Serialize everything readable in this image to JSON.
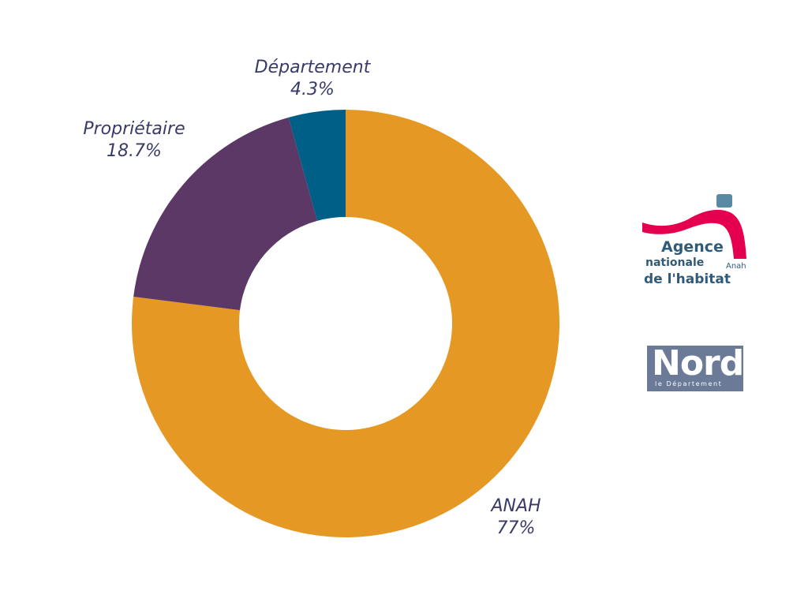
{
  "chart_data": {
    "type": "pie",
    "donut": true,
    "slices": [
      {
        "label": "ANAH",
        "value": 77,
        "value_label": "77%",
        "color": "#e69824"
      },
      {
        "label": "Propriétaire",
        "value": 18.7,
        "value_label": "18.7%",
        "color": "#5c3866"
      },
      {
        "label": "Département",
        "value": 4.3,
        "value_label": "4.3%",
        "color": "#005f87"
      }
    ],
    "legend": "none"
  },
  "logos": {
    "anah": {
      "text_line1": "Agence",
      "text_line2": "nationale",
      "text_line3": "de l'habitat",
      "text_small": "Anah",
      "colors": {
        "arc": "#e4004f",
        "square": "#5a8aa3",
        "text": "#2f5a78"
      }
    },
    "nord": {
      "word": "Nord",
      "subtitle": "le Département",
      "color": "#6b7a96"
    }
  }
}
